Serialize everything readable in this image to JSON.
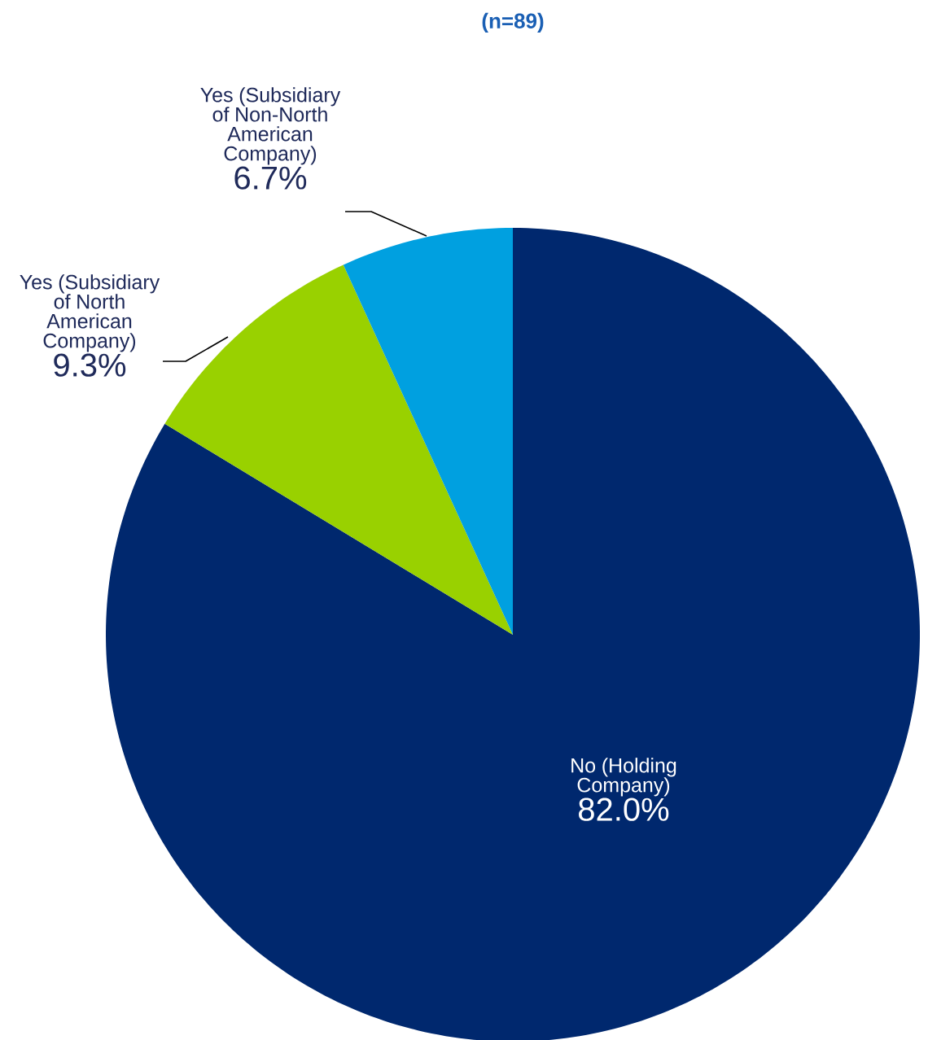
{
  "chart_data": {
    "type": "pie",
    "subtitle": "(n=89)",
    "categories": [
      "No (Holding Company)",
      "Yes (Subsidiary of North American Company)",
      "Yes (Subsidiary of Non-North American Company)"
    ],
    "values": [
      82.0,
      9.3,
      6.7
    ],
    "value_labels": [
      "82.0%",
      "9.3%",
      "6.7%"
    ],
    "colors": [
      "#00286e",
      "#99d100",
      "#00a0e0"
    ]
  }
}
